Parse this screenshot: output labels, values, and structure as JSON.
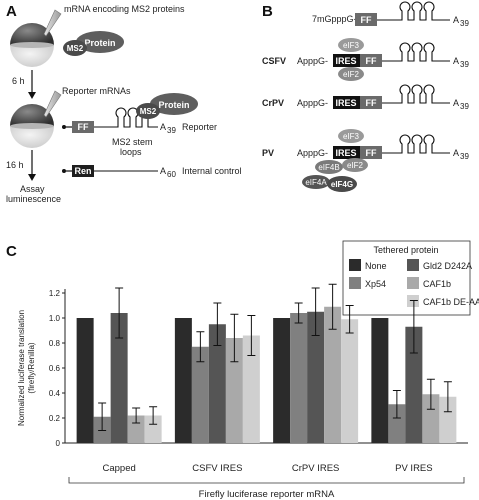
{
  "panels": {
    "a": "A",
    "b": "B",
    "c": "C"
  },
  "panel_a": {
    "mrna_label": "mRNA encoding MS2 proteins",
    "ms2": "MS2",
    "protein": "Protein",
    "time1": "6 h",
    "reporter_mrnas": "Reporter mRNAs",
    "ff": "FF",
    "a39": "A",
    "a39_sub": "39",
    "reporter": "Reporter",
    "ms2_stem_1": "MS2 stem",
    "ms2_stem_2": "loops",
    "time2": "16 h",
    "ren": "Ren",
    "a60": "A",
    "a60_sub": "60",
    "internal_control": "Internal control",
    "assay_1": "Assay",
    "assay_2": "luminescence"
  },
  "panel_b": {
    "cap_7m": "7mGpppG-",
    "capp": "ApppG-",
    "ff": "FF",
    "ires": "IRES",
    "a": "A",
    "a_sub": "39",
    "csfv": "CSFV",
    "crpv": "CrPV",
    "pv": "PV",
    "eif3": "eIF3",
    "eif2": "eIF2",
    "eif4b": "eIF4B",
    "eif4a": "eIF4A",
    "eif4g": "eIF4G"
  },
  "legend": {
    "title": "Tethered protein",
    "items": [
      {
        "label": "None",
        "color": "#2b2b2b"
      },
      {
        "label": "Gld2 D242A",
        "color": "#555555"
      },
      {
        "label": "Xp54",
        "color": "#808080"
      },
      {
        "label": "CAF1b",
        "color": "#a9a9a9"
      },
      {
        "label": "",
        "color": ""
      },
      {
        "label": "CAF1b DE-AA",
        "color": "#cfcfcf"
      }
    ]
  },
  "chart_data": {
    "type": "bar",
    "ylabel": "Normalized luciferase translation",
    "ylabel2": "(firefly/Renilla)",
    "xlabel": "Firefly luciferase reporter mRNA",
    "ylim": [
      0,
      1.2
    ],
    "yticks": [
      "0",
      "0.2",
      "0.4",
      "0.6",
      "0.8",
      "1.0",
      "1.2"
    ],
    "categories": [
      "Capped",
      "CSFV IRES",
      "CrPV IRES",
      "PV IRES"
    ],
    "series": [
      {
        "name": "None",
        "color": "#2b2b2b",
        "values": [
          1.0,
          1.0,
          1.0,
          1.0
        ],
        "errors": [
          0,
          0,
          0,
          0
        ]
      },
      {
        "name": "Xp54",
        "color": "#808080",
        "values": [
          0.21,
          0.77,
          1.04,
          0.31
        ],
        "errors": [
          0.11,
          0.12,
          0.08,
          0.11
        ]
      },
      {
        "name": "Gld2 D242A",
        "color": "#555555",
        "values": [
          1.04,
          0.95,
          1.05,
          0.93
        ],
        "errors": [
          0.2,
          0.17,
          0.19,
          0.21
        ]
      },
      {
        "name": "CAF1b",
        "color": "#a9a9a9",
        "values": [
          0.22,
          0.84,
          1.09,
          0.39
        ],
        "errors": [
          0.06,
          0.19,
          0.18,
          0.12
        ]
      },
      {
        "name": "CAF1b DE-AA",
        "color": "#cfcfcf",
        "values": [
          0.22,
          0.86,
          0.99,
          0.37
        ],
        "errors": [
          0.07,
          0.16,
          0.11,
          0.12
        ]
      }
    ]
  }
}
